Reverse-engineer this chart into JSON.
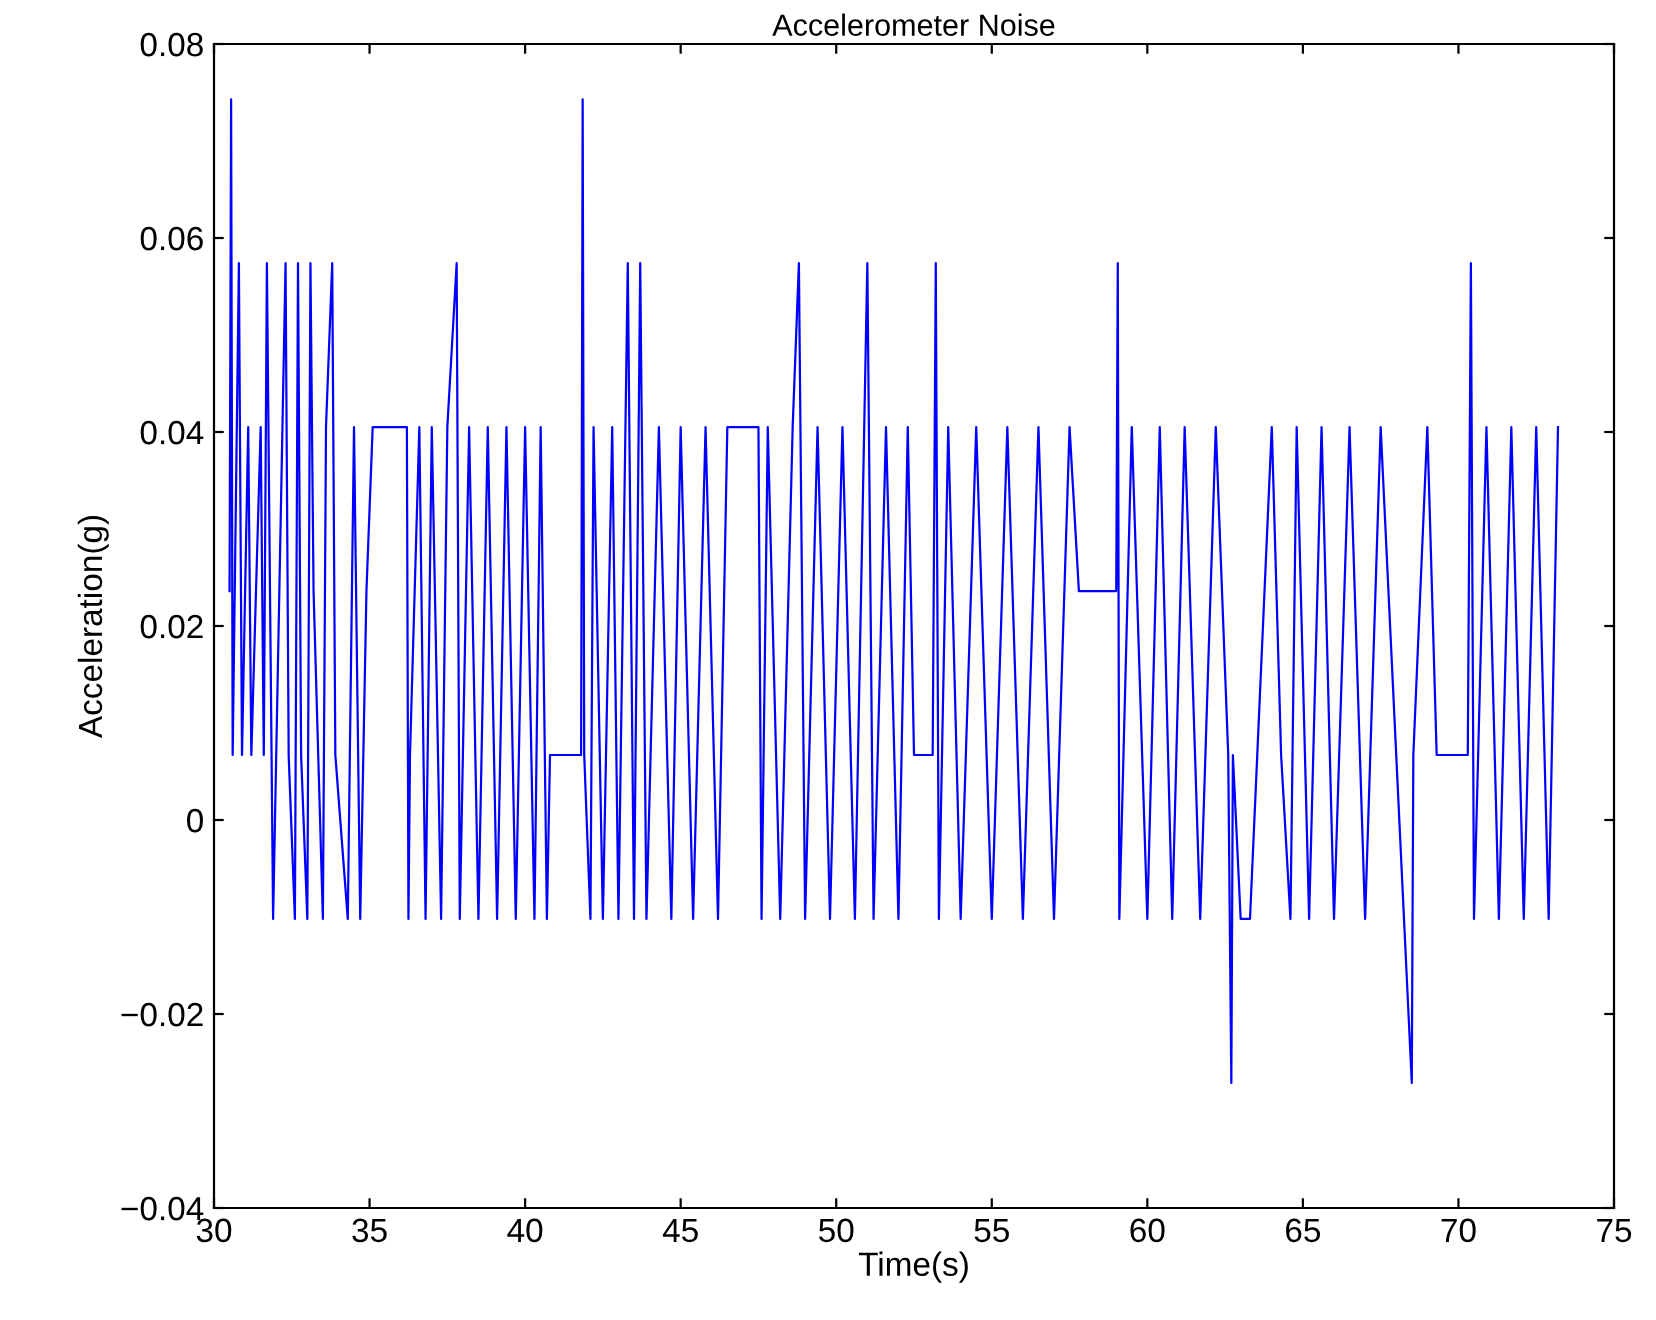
{
  "chart_data": {
    "type": "line",
    "title": "Accelerometer Noise",
    "xlabel": "Time(s)",
    "ylabel": "Acceleration(g)",
    "xlim": [
      30,
      75
    ],
    "xticks": [
      30,
      35,
      40,
      45,
      50,
      55,
      60,
      65,
      70,
      75
    ],
    "ylim": [
      -0.04,
      0.08
    ],
    "yticks": [
      {
        "value": -0.04,
        "label": "−0.04"
      },
      {
        "value": -0.02,
        "label": "−0.02"
      },
      0,
      0.02,
      0.04,
      0.06,
      0.08
    ],
    "grid": false,
    "legend": false,
    "marker": "none",
    "line_style": "solid",
    "series": [
      {
        "color": "#0000ff",
        "x": [
          30.5,
          30.55,
          30.6,
          30.8,
          30.9,
          31.1,
          31.2,
          31.5,
          31.6,
          31.7,
          31.8,
          31.9,
          32.0,
          32.3,
          32.4,
          32.6,
          32.7,
          32.8,
          33.0,
          33.1,
          33.2,
          33.5,
          33.6,
          33.8,
          33.9,
          34.3,
          34.5,
          34.7,
          34.9,
          35.1,
          36.2,
          36.25,
          36.3,
          36.6,
          36.8,
          37.0,
          37.3,
          37.5,
          37.8,
          37.9,
          38.2,
          38.5,
          38.8,
          39.1,
          39.4,
          39.7,
          40.0,
          40.3,
          40.5,
          40.7,
          40.8,
          41.8,
          41.85,
          41.9,
          42.1,
          42.2,
          42.5,
          42.8,
          43.0,
          43.3,
          43.5,
          43.7,
          43.9,
          44.3,
          44.7,
          45.0,
          45.4,
          45.8,
          46.2,
          46.5,
          47.5,
          47.6,
          47.8,
          48.2,
          48.6,
          48.8,
          49.0,
          49.4,
          49.8,
          50.2,
          50.6,
          51.0,
          51.2,
          51.6,
          52.0,
          52.3,
          52.5,
          53.1,
          53.2,
          53.3,
          53.6,
          54.0,
          54.5,
          55.0,
          55.5,
          56.0,
          56.5,
          57.0,
          57.5,
          57.8,
          59.0,
          59.05,
          59.1,
          59.5,
          60.0,
          60.4,
          60.8,
          61.2,
          61.7,
          62.2,
          62.6,
          62.7,
          62.75,
          63.0,
          63.3,
          64.0,
          64.3,
          64.6,
          64.8,
          65.2,
          65.6,
          66.0,
          66.5,
          67.0,
          67.5,
          68.0,
          68.5,
          68.55,
          69.0,
          69.3,
          70.3,
          70.4,
          70.5,
          70.9,
          71.3,
          71.7,
          72.1,
          72.5,
          72.9,
          73.2
        ],
        "values": [
          0.0236,
          0.0743,
          0.0067,
          0.0574,
          0.0067,
          0.0405,
          0.0067,
          0.0405,
          0.0067,
          0.0574,
          0.0236,
          -0.0102,
          0.0067,
          0.0574,
          0.0067,
          -0.0102,
          0.0574,
          0.0067,
          -0.0102,
          0.0574,
          0.0236,
          -0.0102,
          0.0405,
          0.0574,
          0.0067,
          -0.0102,
          0.0405,
          -0.0102,
          0.0236,
          0.0405,
          0.0405,
          -0.0102,
          0.0067,
          0.0405,
          -0.0102,
          0.0405,
          -0.0102,
          0.0405,
          0.0574,
          -0.0102,
          0.0405,
          -0.0102,
          0.0405,
          -0.0102,
          0.0405,
          -0.0102,
          0.0405,
          -0.0102,
          0.0405,
          -0.0102,
          0.0067,
          0.0067,
          0.0743,
          0.0067,
          -0.0102,
          0.0405,
          -0.0102,
          0.0405,
          -0.0102,
          0.0574,
          -0.0102,
          0.0574,
          -0.0102,
          0.0405,
          -0.0102,
          0.0405,
          -0.0102,
          0.0405,
          -0.0102,
          0.0405,
          0.0405,
          -0.0102,
          0.0405,
          -0.0102,
          0.0405,
          0.0574,
          -0.0102,
          0.0405,
          -0.0102,
          0.0405,
          -0.0102,
          0.0574,
          -0.0102,
          0.0405,
          -0.0102,
          0.0405,
          0.0067,
          0.0067,
          0.0574,
          -0.0102,
          0.0405,
          -0.0102,
          0.0405,
          -0.0102,
          0.0405,
          -0.0102,
          0.0405,
          -0.0102,
          0.0405,
          0.0236,
          0.0236,
          0.0574,
          -0.0102,
          0.0405,
          -0.0102,
          0.0405,
          -0.0102,
          0.0405,
          -0.0102,
          0.0405,
          0.0067,
          -0.0271,
          0.0067,
          -0.0102,
          -0.0102,
          0.0405,
          0.0067,
          -0.0102,
          0.0405,
          -0.0102,
          0.0405,
          -0.0102,
          0.0405,
          -0.0102,
          0.0405,
          0.0067,
          -0.0271,
          0.0067,
          0.0405,
          0.0067,
          0.0067,
          0.0574,
          -0.0102,
          0.0405,
          -0.0102,
          0.0405,
          -0.0102,
          0.0405,
          -0.0102,
          0.0405
        ]
      }
    ]
  }
}
